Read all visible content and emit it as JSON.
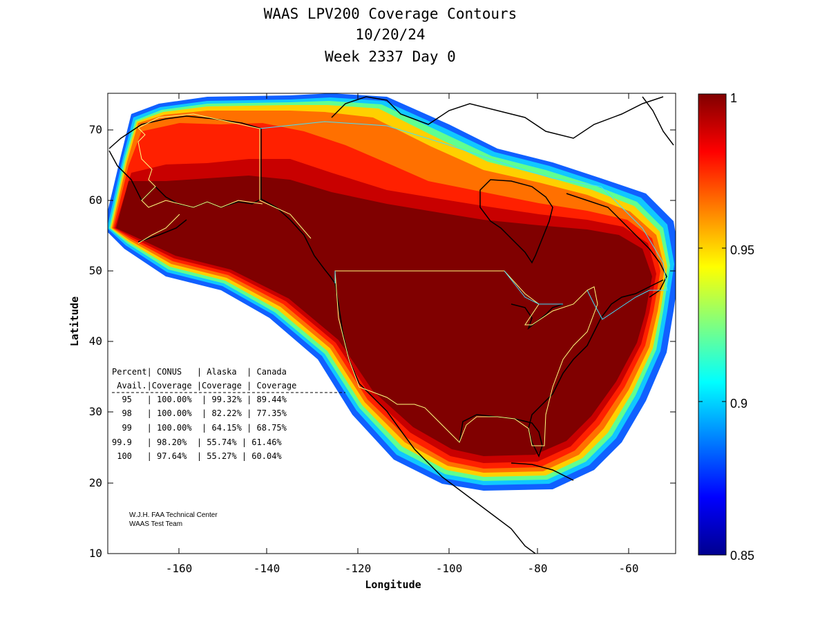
{
  "title": {
    "line1": "WAAS LPV200 Coverage Contours",
    "line2": "10/20/24",
    "line3": "Week 2337 Day 0"
  },
  "axes": {
    "xlabel": "Longitude",
    "ylabel": "Latitude",
    "xlim": [
      -175,
      -50
    ],
    "ylim": [
      10,
      75
    ],
    "xticks": [
      -160,
      -140,
      -120,
      -100,
      -80,
      -60
    ],
    "yticks": [
      10,
      20,
      30,
      40,
      50,
      60,
      70
    ]
  },
  "colorbar": {
    "colormap": "jet",
    "range": [
      0.85,
      1
    ],
    "ticks": [
      "1",
      "0.95",
      "0.9",
      "0.85"
    ],
    "low_color": "#00008f",
    "high_color": "#800000"
  },
  "table": {
    "header1": "Percent| CONUS   | Alaska  | Canada",
    "header2": " Avail.|Coverage |Coverage | Coverage",
    "rows": [
      "  95   | 100.00%  | 99.32% | 89.44%",
      "  98   | 100.00%  | 82.22% | 77.35%",
      "  99   | 100.00%  | 64.15% | 68.75%",
      "99.9   | 98.20%  | 55.74% | 61.46%",
      " 100   | 97.64%  | 55.27% | 60.04%"
    ]
  },
  "credit": {
    "line1": "W.J.H. FAA Technical Center",
    "line2": "WAAS Test Team"
  },
  "chart_data": {
    "type": "heatmap",
    "title": "WAAS LPV200 Coverage Contours",
    "xlabel": "Longitude",
    "ylabel": "Latitude",
    "xlim": [
      -175,
      -50
    ],
    "ylim": [
      10,
      75
    ],
    "color_range": [
      0.85,
      1
    ],
    "coverage_table": {
      "columns": [
        "Percent Avail.",
        "CONUS Coverage",
        "Alaska Coverage",
        "Canada Coverage"
      ],
      "rows": [
        [
          "95",
          "100.00%",
          "99.32%",
          "89.44%"
        ],
        [
          "98",
          "100.00%",
          "82.22%",
          "77.35%"
        ],
        [
          "99",
          "100.00%",
          "64.15%",
          "68.75%"
        ],
        [
          "99.9",
          "98.20%",
          "55.74%",
          "61.46%"
        ],
        [
          "100",
          "97.64%",
          "55.27%",
          "60.04%"
        ]
      ]
    }
  }
}
